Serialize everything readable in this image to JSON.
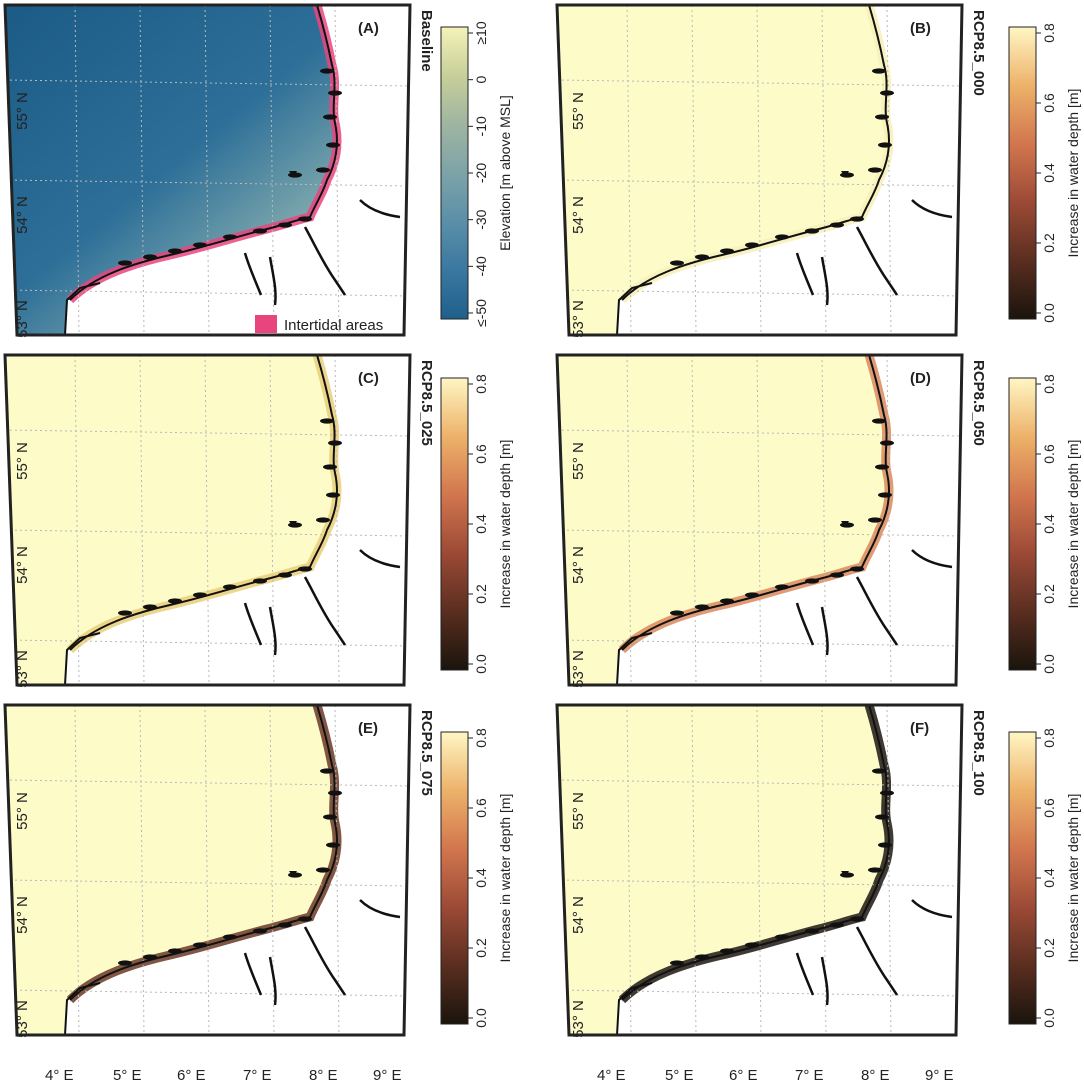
{
  "panels": [
    {
      "id": "A",
      "letter": "(A)",
      "scenario": "Baseline",
      "type": "elevation"
    },
    {
      "id": "B",
      "letter": "(B)",
      "scenario": "RCP8.5_000",
      "type": "depth",
      "shade": 0.0
    },
    {
      "id": "C",
      "letter": "(C)",
      "scenario": "RCP8.5_025",
      "type": "depth",
      "shade": 0.25
    },
    {
      "id": "D",
      "letter": "(D)",
      "scenario": "RCP8.5_050",
      "type": "depth",
      "shade": 0.5
    },
    {
      "id": "E",
      "letter": "(E)",
      "scenario": "RCP8.5_075",
      "type": "depth",
      "shade": 0.75
    },
    {
      "id": "F",
      "letter": "(F)",
      "scenario": "RCP8.5_100",
      "type": "depth",
      "shade": 1.0
    }
  ],
  "lat_labels": [
    "53° N",
    "54° N",
    "55° N"
  ],
  "lon_labels": [
    "4° E",
    "5° E",
    "6° E",
    "7° E",
    "8° E",
    "9° E"
  ],
  "elevation_colorbar": {
    "label": "Elevation [m above MSL]",
    "ticks": [
      "≤-50",
      "-40",
      "-30",
      "-20",
      "-10",
      "0",
      "≥10"
    ],
    "colors": [
      "#1f5f8b",
      "#3a78a0",
      "#5a8fa8",
      "#7da3a8",
      "#9fb5a0",
      "#c7cf9a",
      "#f4f2b8"
    ]
  },
  "depth_colorbar": {
    "label": "Increase in water depth [m]",
    "ticks": [
      "0.0",
      "0.2",
      "0.4",
      "0.6",
      "0.8"
    ],
    "colors": [
      "#1a140c",
      "#5a2e20",
      "#9c4a36",
      "#d2764e",
      "#edb26a",
      "#fff6c4"
    ]
  },
  "legend": {
    "intertidal_label": "Intertidal areas",
    "intertidal_color": "#e8457f"
  },
  "colors": {
    "sea_water": "#fdfbc8",
    "land": "#ffffff",
    "coast": "#111111",
    "grid": "#b9b9b9"
  }
}
